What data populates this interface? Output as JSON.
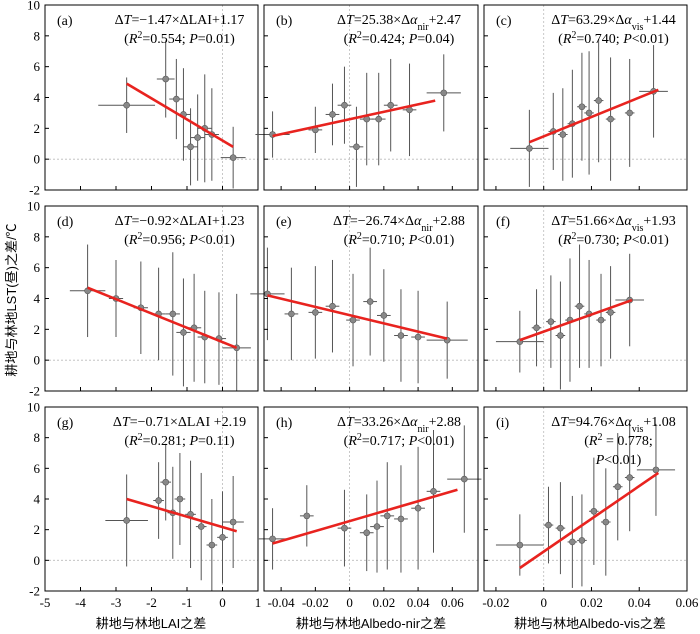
{
  "ylabel": "耕地与林地LST(昼)之差/℃",
  "xlabels": [
    "耕地与林地LAI之差",
    "耕地与林地Albedo-nir之差",
    "耕地与林地Albedo-vis之差"
  ],
  "ylim": [
    -2,
    10
  ],
  "yticks": [
    "-2",
    "0",
    "2",
    "4",
    "6",
    "8",
    "10"
  ],
  "columns": [
    {
      "xlim": [
        -5,
        1
      ],
      "xticks": [
        "-5",
        "-4",
        "-3",
        "-2",
        "-1",
        "0",
        "1"
      ]
    },
    {
      "xlim": [
        -0.05,
        0.075
      ],
      "xticks": [
        "-0.04",
        "-0.02",
        "0",
        "0.02",
        "0.04",
        "0.06"
      ]
    },
    {
      "xlim": [
        -0.025,
        0.06
      ],
      "xticks": [
        "-0.02",
        "0",
        "0.02",
        "0.04",
        "0.06"
      ]
    }
  ],
  "chart_data": [
    {
      "id": "a",
      "label": "(a)",
      "type": "scatter",
      "col": 0,
      "row": 0,
      "eq": "ΔT=−1.47×ΔLAI+1.17",
      "stat": "(R²=0.554; P=0.01)",
      "fit": {
        "x": [
          -2.7,
          0.3
        ],
        "y": [
          4.9,
          0.8
        ]
      },
      "points": [
        {
          "x": -2.7,
          "y": 3.5,
          "xe": 0.8,
          "ye": 1.8
        },
        {
          "x": -1.6,
          "y": 5.2,
          "xe": 0.25,
          "ye": 2.5
        },
        {
          "x": -1.3,
          "y": 3.9,
          "xe": 0.2,
          "ye": 2.6
        },
        {
          "x": -1.1,
          "y": 2.9,
          "xe": 0.2,
          "ye": 3.0
        },
        {
          "x": -0.9,
          "y": 0.8,
          "xe": 0.2,
          "ye": 2.5
        },
        {
          "x": -0.7,
          "y": 1.4,
          "xe": 0.2,
          "ye": 2.8
        },
        {
          "x": -0.5,
          "y": 2.0,
          "xe": 0.2,
          "ye": 3.5
        },
        {
          "x": -0.3,
          "y": 1.6,
          "xe": 0.2,
          "ye": 3.0
        },
        {
          "x": 0.3,
          "y": 0.1,
          "xe": 0.35,
          "ye": 2.0
        }
      ]
    },
    {
      "id": "b",
      "label": "(b)",
      "type": "scatter",
      "col": 1,
      "row": 0,
      "eq": "ΔT=25.38×Δαnir+2.47",
      "stat": "(R²=0.424; P=0.04)",
      "fit": {
        "x": [
          -0.045,
          0.05
        ],
        "y": [
          1.5,
          3.8
        ]
      },
      "points": [
        {
          "x": -0.045,
          "y": 1.6,
          "xe": 0.01,
          "ye": 1.5
        },
        {
          "x": -0.02,
          "y": 1.9,
          "xe": 0.004,
          "ye": 1.5
        },
        {
          "x": -0.01,
          "y": 2.9,
          "xe": 0.004,
          "ye": 2.0
        },
        {
          "x": -0.003,
          "y": 3.5,
          "xe": 0.004,
          "ye": 2.5
        },
        {
          "x": 0.004,
          "y": 0.8,
          "xe": 0.004,
          "ye": 2.6
        },
        {
          "x": 0.01,
          "y": 2.6,
          "xe": 0.004,
          "ye": 3.0
        },
        {
          "x": 0.017,
          "y": 2.6,
          "xe": 0.004,
          "ye": 3.0
        },
        {
          "x": 0.024,
          "y": 3.5,
          "xe": 0.004,
          "ye": 3.0
        },
        {
          "x": 0.035,
          "y": 3.2,
          "xe": 0.004,
          "ye": 3.0
        },
        {
          "x": 0.055,
          "y": 4.3,
          "xe": 0.01,
          "ye": 2.5
        }
      ]
    },
    {
      "id": "c",
      "label": "(c)",
      "type": "scatter",
      "col": 2,
      "row": 0,
      "eq": "ΔT=63.29×Δαvis+1.44",
      "stat": "(R²=0.740; P<0.01)",
      "fit": {
        "x": [
          -0.006,
          0.048
        ],
        "y": [
          1.1,
          4.5
        ]
      },
      "points": [
        {
          "x": -0.006,
          "y": 0.7,
          "xe": 0.008,
          "ye": 2.5
        },
        {
          "x": 0.004,
          "y": 1.8,
          "xe": 0.002,
          "ye": 2.5
        },
        {
          "x": 0.008,
          "y": 1.6,
          "xe": 0.002,
          "ye": 3.0
        },
        {
          "x": 0.012,
          "y": 2.3,
          "xe": 0.002,
          "ye": 3.5
        },
        {
          "x": 0.016,
          "y": 3.4,
          "xe": 0.002,
          "ye": 3.5
        },
        {
          "x": 0.019,
          "y": 3.0,
          "xe": 0.002,
          "ye": 4.0
        },
        {
          "x": 0.023,
          "y": 3.8,
          "xe": 0.002,
          "ye": 4.0
        },
        {
          "x": 0.028,
          "y": 2.6,
          "xe": 0.002,
          "ye": 4.0
        },
        {
          "x": 0.036,
          "y": 3.0,
          "xe": 0.002,
          "ye": 3.5
        },
        {
          "x": 0.046,
          "y": 4.4,
          "xe": 0.006,
          "ye": 3.0
        }
      ]
    },
    {
      "id": "d",
      "label": "(d)",
      "type": "scatter",
      "col": 0,
      "row": 1,
      "eq": "ΔT=−0.92×ΔLAI+1.23",
      "stat": "(R²=0.956; P<0.01)",
      "fit": {
        "x": [
          -3.8,
          0.4
        ],
        "y": [
          4.7,
          0.8
        ]
      },
      "points": [
        {
          "x": -3.8,
          "y": 4.5,
          "xe": 0.5,
          "ye": 3.0
        },
        {
          "x": -3.0,
          "y": 4.0,
          "xe": 0.2,
          "ye": 2.5
        },
        {
          "x": -2.3,
          "y": 3.4,
          "xe": 0.2,
          "ye": 3.0
        },
        {
          "x": -1.8,
          "y": 3.0,
          "xe": 0.2,
          "ye": 3.0
        },
        {
          "x": -1.4,
          "y": 3.0,
          "xe": 0.2,
          "ye": 4.0
        },
        {
          "x": -1.1,
          "y": 1.8,
          "xe": 0.2,
          "ye": 3.5
        },
        {
          "x": -0.8,
          "y": 2.1,
          "xe": 0.2,
          "ye": 3.5
        },
        {
          "x": -0.5,
          "y": 1.5,
          "xe": 0.2,
          "ye": 3.0
        },
        {
          "x": -0.1,
          "y": 1.4,
          "xe": 0.2,
          "ye": 3.0
        },
        {
          "x": 0.4,
          "y": 0.8,
          "xe": 0.4,
          "ye": 3.5
        }
      ]
    },
    {
      "id": "e",
      "label": "(e)",
      "type": "scatter",
      "col": 1,
      "row": 1,
      "eq": "ΔT=−26.74×Δαnir+2.88",
      "stat": "(R²=0.710; P<0.01)",
      "fit": {
        "x": [
          -0.048,
          0.057
        ],
        "y": [
          4.2,
          1.4
        ]
      },
      "points": [
        {
          "x": -0.048,
          "y": 4.3,
          "xe": 0.01,
          "ye": 3.0
        },
        {
          "x": -0.034,
          "y": 3.0,
          "xe": 0.004,
          "ye": 3.0
        },
        {
          "x": -0.02,
          "y": 3.1,
          "xe": 0.004,
          "ye": 3.0
        },
        {
          "x": -0.01,
          "y": 3.5,
          "xe": 0.004,
          "ye": 3.0
        },
        {
          "x": 0.002,
          "y": 2.6,
          "xe": 0.004,
          "ye": 3.0
        },
        {
          "x": 0.012,
          "y": 3.8,
          "xe": 0.004,
          "ye": 3.5
        },
        {
          "x": 0.02,
          "y": 2.9,
          "xe": 0.004,
          "ye": 3.0
        },
        {
          "x": 0.03,
          "y": 1.6,
          "xe": 0.004,
          "ye": 3.0
        },
        {
          "x": 0.04,
          "y": 1.5,
          "xe": 0.004,
          "ye": 3.0
        },
        {
          "x": 0.057,
          "y": 1.3,
          "xe": 0.012,
          "ye": 2.5
        }
      ]
    },
    {
      "id": "f",
      "label": "(f)",
      "type": "scatter",
      "col": 2,
      "row": 1,
      "eq": "ΔT=51.66×Δαvis+1.93",
      "stat": "(R²=0.730; P<0.01)",
      "fit": {
        "x": [
          -0.01,
          0.037
        ],
        "y": [
          1.3,
          3.9
        ]
      },
      "points": [
        {
          "x": -0.01,
          "y": 1.2,
          "xe": 0.01,
          "ye": 2.0
        },
        {
          "x": -0.003,
          "y": 2.1,
          "xe": 0.002,
          "ye": 2.5
        },
        {
          "x": 0.003,
          "y": 2.5,
          "xe": 0.002,
          "ye": 3.0
        },
        {
          "x": 0.007,
          "y": 1.6,
          "xe": 0.002,
          "ye": 3.5
        },
        {
          "x": 0.011,
          "y": 2.6,
          "xe": 0.002,
          "ye": 4.0
        },
        {
          "x": 0.015,
          "y": 3.5,
          "xe": 0.002,
          "ye": 4.0
        },
        {
          "x": 0.019,
          "y": 3.0,
          "xe": 0.002,
          "ye": 3.5
        },
        {
          "x": 0.024,
          "y": 2.6,
          "xe": 0.002,
          "ye": 3.0
        },
        {
          "x": 0.028,
          "y": 3.1,
          "xe": 0.002,
          "ye": 3.0
        },
        {
          "x": 0.036,
          "y": 3.9,
          "xe": 0.006,
          "ye": 3.0
        }
      ]
    },
    {
      "id": "g",
      "label": "(g)",
      "type": "scatter",
      "col": 0,
      "row": 2,
      "eq": "ΔT=−0.71×ΔLAI +2.19",
      "stat": "(R²=0.281; P=0.11)",
      "fit": {
        "x": [
          -2.7,
          0.4
        ],
        "y": [
          4.0,
          1.9
        ]
      },
      "points": [
        {
          "x": -2.7,
          "y": 2.6,
          "xe": 0.6,
          "ye": 3.0
        },
        {
          "x": -1.8,
          "y": 3.9,
          "xe": 0.15,
          "ye": 2.5
        },
        {
          "x": -1.6,
          "y": 5.1,
          "xe": 0.15,
          "ye": 2.5
        },
        {
          "x": -1.4,
          "y": 3.1,
          "xe": 0.15,
          "ye": 3.0
        },
        {
          "x": -1.2,
          "y": 4.0,
          "xe": 0.15,
          "ye": 3.0
        },
        {
          "x": -0.9,
          "y": 3.0,
          "xe": 0.15,
          "ye": 3.5
        },
        {
          "x": -0.6,
          "y": 2.2,
          "xe": 0.15,
          "ye": 3.5
        },
        {
          "x": -0.3,
          "y": 1.0,
          "xe": 0.15,
          "ye": 3.0
        },
        {
          "x": 0.0,
          "y": 1.5,
          "xe": 0.15,
          "ye": 3.0
        },
        {
          "x": 0.3,
          "y": 2.5,
          "xe": 0.3,
          "ye": 3.0
        }
      ]
    },
    {
      "id": "h",
      "label": "(h)",
      "type": "scatter",
      "col": 1,
      "row": 2,
      "eq": "ΔT=33.26×Δαnir+2.88",
      "stat": "(R²=0.717; P<0.01)",
      "fit": {
        "x": [
          -0.045,
          0.063
        ],
        "y": [
          1.1,
          4.6
        ]
      },
      "points": [
        {
          "x": -0.045,
          "y": 1.4,
          "xe": 0.008,
          "ye": 2.0
        },
        {
          "x": -0.025,
          "y": 2.9,
          "xe": 0.004,
          "ye": 2.0
        },
        {
          "x": -0.003,
          "y": 2.1,
          "xe": 0.004,
          "ye": 2.5
        },
        {
          "x": 0.01,
          "y": 1.8,
          "xe": 0.004,
          "ye": 2.5
        },
        {
          "x": 0.016,
          "y": 2.2,
          "xe": 0.004,
          "ye": 3.0
        },
        {
          "x": 0.022,
          "y": 2.9,
          "xe": 0.004,
          "ye": 3.5
        },
        {
          "x": 0.03,
          "y": 2.7,
          "xe": 0.004,
          "ye": 3.5
        },
        {
          "x": 0.04,
          "y": 3.4,
          "xe": 0.004,
          "ye": 4.0
        },
        {
          "x": 0.049,
          "y": 4.5,
          "xe": 0.004,
          "ye": 4.0
        },
        {
          "x": 0.067,
          "y": 5.3,
          "xe": 0.01,
          "ye": 3.5
        }
      ]
    },
    {
      "id": "i",
      "label": "(i)",
      "type": "scatter",
      "col": 2,
      "row": 2,
      "eq": "ΔT=94.76×Δαvis+1.08",
      "stat1": "(R² = 0.778;",
      "stat2": "P<0.01)",
      "fit": {
        "x": [
          -0.01,
          0.048
        ],
        "y": [
          -0.5,
          5.7
        ]
      },
      "points": [
        {
          "x": -0.01,
          "y": 1.0,
          "xe": 0.01,
          "ye": 2.0
        },
        {
          "x": 0.002,
          "y": 2.3,
          "xe": 0.002,
          "ye": 2.5
        },
        {
          "x": 0.007,
          "y": 2.1,
          "xe": 0.002,
          "ye": 3.0
        },
        {
          "x": 0.012,
          "y": 1.2,
          "xe": 0.002,
          "ye": 3.0
        },
        {
          "x": 0.016,
          "y": 1.3,
          "xe": 0.002,
          "ye": 3.0
        },
        {
          "x": 0.021,
          "y": 3.2,
          "xe": 0.002,
          "ye": 3.5
        },
        {
          "x": 0.026,
          "y": 2.5,
          "xe": 0.002,
          "ye": 3.5
        },
        {
          "x": 0.031,
          "y": 4.8,
          "xe": 0.002,
          "ye": 3.5
        },
        {
          "x": 0.036,
          "y": 5.4,
          "xe": 0.002,
          "ye": 3.5
        },
        {
          "x": 0.047,
          "y": 5.9,
          "xe": 0.008,
          "ye": 3.0
        }
      ]
    }
  ]
}
